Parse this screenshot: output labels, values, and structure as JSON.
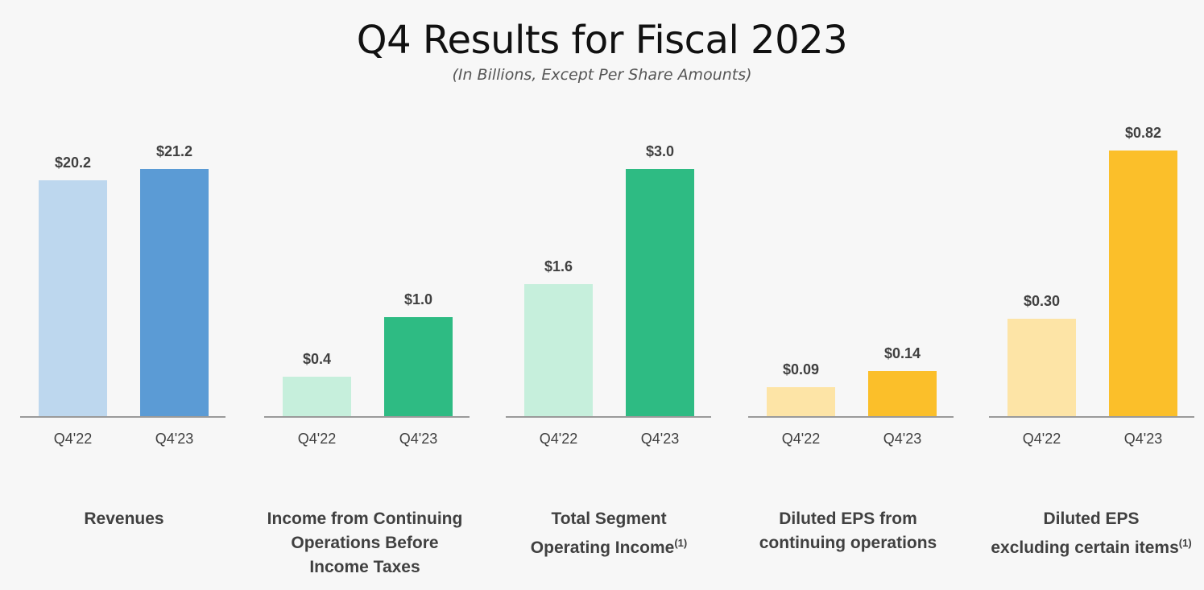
{
  "header": {
    "title": "Q4 Results for Fiscal 2023",
    "subtitle": "(In Billions, Except Per Share Amounts)"
  },
  "chart_data": [
    {
      "type": "bar",
      "title_lines": [
        "Revenues"
      ],
      "footnote": "",
      "categories": [
        "Q4'22",
        "Q4'23"
      ],
      "values": [
        20.2,
        21.2
      ],
      "value_labels": [
        "$20.2",
        "$21.2"
      ],
      "colors": [
        "#bdd7ee",
        "#5b9bd5"
      ],
      "ylim": [
        0,
        21.2
      ]
    },
    {
      "type": "bar",
      "title_lines": [
        "Income from Continuing",
        "Operations Before",
        "Income Taxes"
      ],
      "footnote": "",
      "categories": [
        "Q4'22",
        "Q4'23"
      ],
      "values": [
        0.4,
        1.0
      ],
      "value_labels": [
        "$0.4",
        "$1.0"
      ],
      "colors": [
        "#c6efdc",
        "#2ebb83"
      ],
      "ylim": [
        0,
        2.5
      ]
    },
    {
      "type": "bar",
      "title_lines": [
        "Total Segment",
        "Operating Income"
      ],
      "footnote": "(1)",
      "categories": [
        "Q4'22",
        "Q4'23"
      ],
      "values": [
        1.6,
        3.0
      ],
      "value_labels": [
        "$1.6",
        "$3.0"
      ],
      "colors": [
        "#c6efdc",
        "#2ebb83"
      ],
      "ylim": [
        0,
        3.0
      ]
    },
    {
      "type": "bar",
      "title_lines": [
        "Diluted EPS from",
        "continuing operations"
      ],
      "footnote": "",
      "categories": [
        "Q4'22",
        "Q4'23"
      ],
      "values": [
        0.09,
        0.14
      ],
      "value_labels": [
        "$0.09",
        "$0.14"
      ],
      "colors": [
        "#fde4a6",
        "#fbbf2a"
      ],
      "ylim": [
        0,
        0.82
      ]
    },
    {
      "type": "bar",
      "title_lines": [
        "Diluted EPS",
        "excluding certain items"
      ],
      "footnote": "(1)",
      "categories": [
        "Q4'22",
        "Q4'23"
      ],
      "values": [
        0.3,
        0.82
      ],
      "value_labels": [
        "$0.30",
        "$0.82"
      ],
      "colors": [
        "#fde4a6",
        "#fbbf2a"
      ],
      "ylim": [
        0,
        0.82
      ]
    }
  ]
}
